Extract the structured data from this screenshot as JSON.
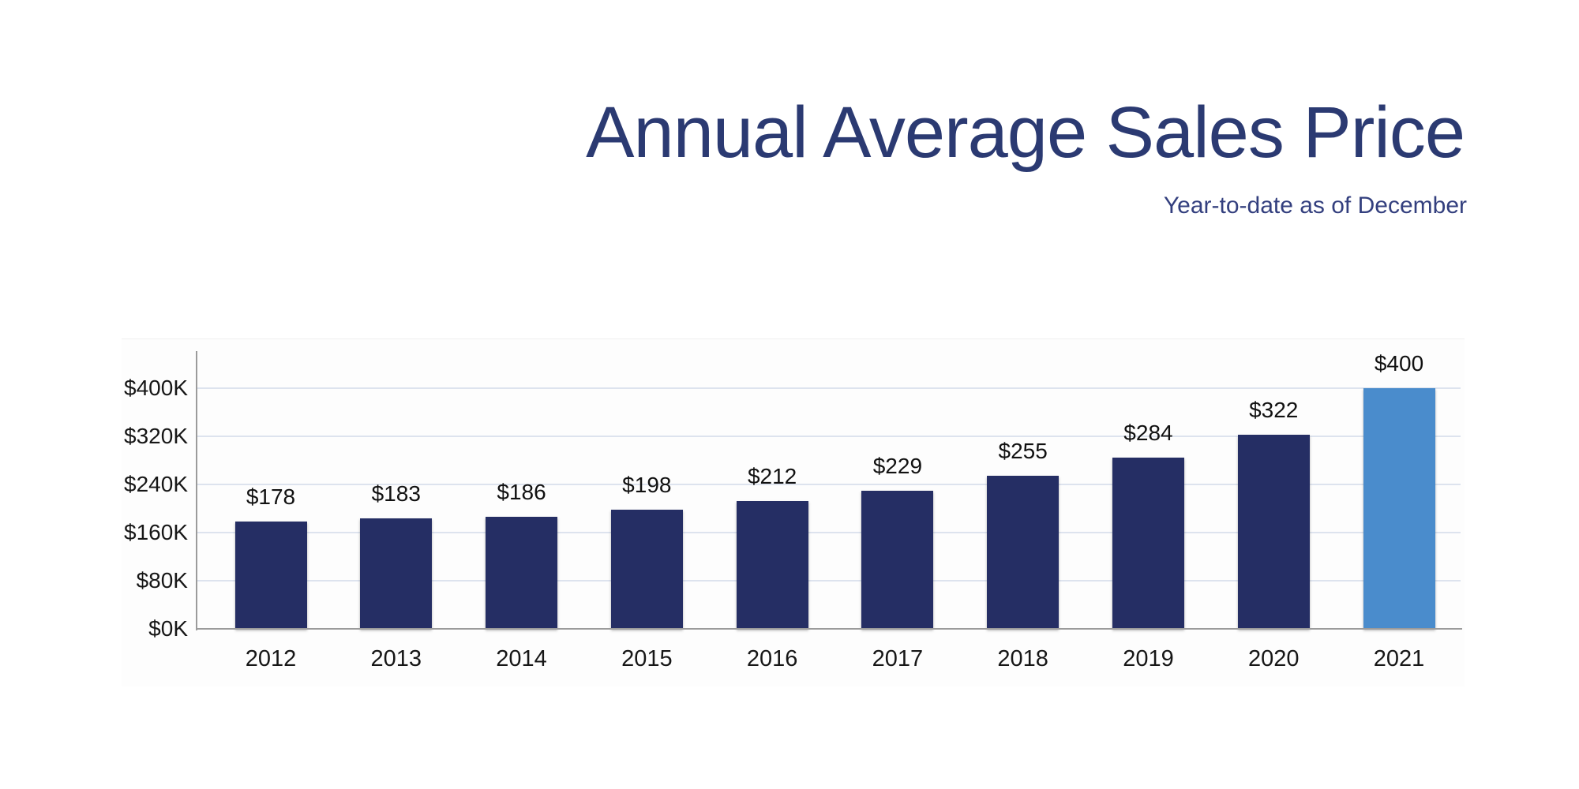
{
  "header": {
    "title": "Annual Average Sales Price",
    "subtitle": "Year-to-date as of December"
  },
  "chart_data": {
    "type": "bar",
    "title": "Annual Average Sales Price",
    "subtitle": "Year-to-date as of December",
    "categories": [
      "2012",
      "2013",
      "2014",
      "2015",
      "2016",
      "2017",
      "2018",
      "2019",
      "2020",
      "2021"
    ],
    "values": [
      178,
      183,
      186,
      198,
      212,
      229,
      255,
      284,
      322,
      400
    ],
    "data_labels": [
      "$178",
      "$183",
      "$186",
      "$198",
      "$212",
      "$229",
      "$255",
      "$284",
      "$322",
      "$400"
    ],
    "unit": "thousands of dollars",
    "xlabel": "",
    "ylabel": "",
    "y_ticks": [
      {
        "value": 0,
        "label": "$0K"
      },
      {
        "value": 80,
        "label": "$80K"
      },
      {
        "value": 160,
        "label": "$160K"
      },
      {
        "value": 240,
        "label": "$240K"
      },
      {
        "value": 320,
        "label": "$320K"
      },
      {
        "value": 400,
        "label": "$400K"
      }
    ],
    "ylim": [
      0,
      462
    ],
    "grid": true,
    "legend": "none",
    "colors": {
      "bar_default": "#252e64",
      "bar_highlight": "#4a8ccc",
      "highlight_index": 9,
      "gridline": "#dde3ee",
      "axis": "#9b9b9b",
      "title_text": "#2b3a72",
      "subtitle_text": "#333f7e",
      "label_text": "#111111"
    }
  }
}
